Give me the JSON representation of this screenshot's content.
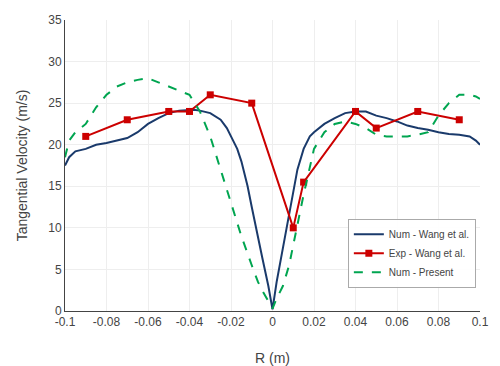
{
  "chart_data": {
    "type": "line",
    "xlabel": "R (m)",
    "ylabel": "Tangential Velocity (m/s)",
    "xlim": [
      -0.1,
      0.1
    ],
    "ylim": [
      0,
      35
    ],
    "xticks": [
      -0.1,
      -0.08,
      -0.06,
      -0.04,
      -0.02,
      0,
      0.02,
      0.04,
      0.06,
      0.08,
      0.1
    ],
    "yticks": [
      0,
      5,
      10,
      15,
      20,
      25,
      30,
      35
    ],
    "grid": true,
    "legend": "lower right",
    "series": [
      {
        "name": "Num - Wang et al.",
        "color": "#1a3a6b",
        "line_style": "solid",
        "x": [
          -0.1,
          -0.098,
          -0.095,
          -0.09,
          -0.085,
          -0.08,
          -0.075,
          -0.07,
          -0.065,
          -0.06,
          -0.055,
          -0.05,
          -0.045,
          -0.04,
          -0.038,
          -0.035,
          -0.03,
          -0.025,
          -0.022,
          -0.02,
          -0.017,
          -0.015,
          -0.012,
          -0.01,
          -0.008,
          -0.005,
          -0.002,
          0.0,
          0.002,
          0.005,
          0.008,
          0.01,
          0.012,
          0.015,
          0.018,
          0.02,
          0.025,
          0.03,
          0.035,
          0.04,
          0.045,
          0.05,
          0.055,
          0.06,
          0.065,
          0.07,
          0.075,
          0.08,
          0.085,
          0.09,
          0.095,
          0.098,
          0.1
        ],
        "values": [
          17.5,
          18.5,
          19.2,
          19.5,
          20.0,
          20.2,
          20.5,
          20.8,
          21.5,
          22.5,
          23.2,
          23.8,
          24.1,
          24.2,
          24.2,
          24.1,
          23.8,
          23.0,
          22.0,
          21.0,
          19.5,
          18.0,
          15.0,
          12.5,
          10.0,
          6.5,
          3.0,
          0.2,
          3.5,
          7.5,
          11.5,
          14.5,
          17.0,
          19.5,
          21.0,
          21.5,
          22.5,
          23.2,
          23.8,
          24.0,
          24.0,
          23.5,
          23.2,
          22.8,
          22.3,
          22.0,
          21.8,
          21.5,
          21.3,
          21.2,
          21.0,
          20.5,
          20.0
        ]
      },
      {
        "name": "Exp - Wang et al.",
        "color": "#cc0000",
        "line_style": "solid",
        "marker": "square",
        "x": [
          -0.09,
          -0.07,
          -0.05,
          -0.04,
          -0.03,
          -0.01,
          0.01,
          0.015,
          0.04,
          0.05,
          0.07,
          0.09
        ],
        "values": [
          21.0,
          23.0,
          24.0,
          24.0,
          26.0,
          25.0,
          10.0,
          15.5,
          24.0,
          22.0,
          24.0,
          23.0
        ]
      },
      {
        "name": "Num - Present",
        "color": "#00a550",
        "line_style": "dashed",
        "x": [
          -0.1,
          -0.098,
          -0.095,
          -0.09,
          -0.085,
          -0.08,
          -0.075,
          -0.07,
          -0.065,
          -0.06,
          -0.055,
          -0.05,
          -0.045,
          -0.04,
          -0.035,
          -0.03,
          -0.025,
          -0.02,
          -0.015,
          -0.01,
          -0.007,
          -0.005,
          -0.002,
          0.0,
          0.002,
          0.005,
          0.008,
          0.01,
          0.015,
          0.02,
          0.025,
          0.03,
          0.035,
          0.04,
          0.045,
          0.05,
          0.055,
          0.06,
          0.065,
          0.07,
          0.075,
          0.08,
          0.085,
          0.09,
          0.095,
          0.098,
          0.1
        ],
        "values": [
          18.5,
          20.5,
          21.5,
          22.5,
          24.5,
          26.0,
          27.0,
          27.5,
          27.8,
          28.0,
          27.5,
          27.0,
          26.5,
          26.0,
          24.0,
          21.0,
          17.0,
          13.0,
          9.0,
          5.5,
          3.5,
          2.5,
          1.2,
          0.3,
          1.5,
          3.0,
          5.5,
          8.0,
          14.0,
          19.5,
          21.5,
          22.5,
          22.8,
          22.5,
          22.0,
          21.2,
          21.0,
          21.0,
          21.0,
          21.2,
          21.5,
          23.5,
          25.0,
          26.0,
          26.0,
          25.8,
          25.5
        ]
      }
    ]
  }
}
